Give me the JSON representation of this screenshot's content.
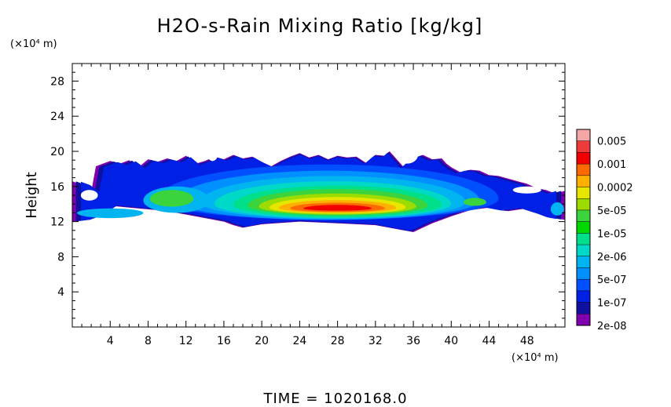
{
  "chart_data": {
    "type": "heatmap",
    "title": "H2O-s-Rain Mixing Ratio [kg/kg]",
    "ylabel": "Height",
    "y_unit_label": "(×10⁴ m)",
    "x_unit_label": "(×10⁴ m)",
    "xlim": [
      0,
      52
    ],
    "ylim": [
      0,
      30
    ],
    "x_ticks": [
      4,
      8,
      12,
      16,
      20,
      24,
      28,
      32,
      36,
      40,
      44,
      48
    ],
    "y_ticks": [
      4,
      8,
      12,
      16,
      20,
      24,
      28
    ],
    "colorbar": {
      "labels": [
        "0.005",
        "0.001",
        "0.0002",
        "5e-05",
        "1e-05",
        "2e-06",
        "5e-07",
        "1e-07",
        "2e-08"
      ],
      "colors_top_to_bottom": [
        "#f5a6a6",
        "#ee3a3a",
        "#f20000",
        "#ff6a00",
        "#ffb000",
        "#e6e600",
        "#9cdc00",
        "#3cd43c",
        "#00d800",
        "#00e08a",
        "#00d8c8",
        "#00b4f0",
        "#0090ff",
        "#0050ff",
        "#0020e6",
        "#1010a0",
        "#8000b0"
      ]
    },
    "band": {
      "description": "Rain mixing ratio field in a horizontal layer roughly between 11 and 19 (×10⁴ m) height, peak near x = 26–30",
      "peak_value": "0.001",
      "peak_height": 13.5
    }
  },
  "footer": {
    "time_label": "TIME = 1020168.0"
  }
}
